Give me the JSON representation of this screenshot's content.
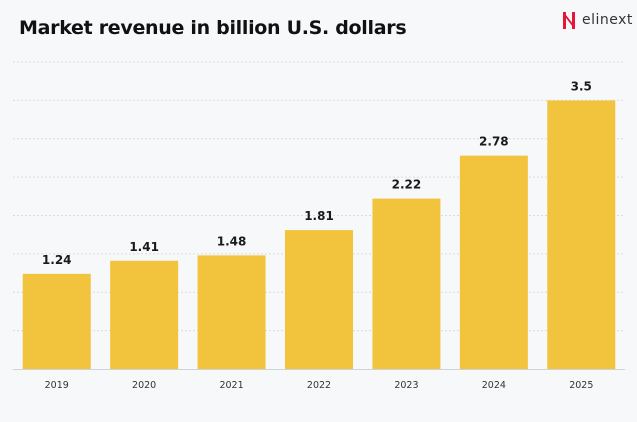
{
  "brand": {
    "name": "elinext",
    "accent": "#e4163a"
  },
  "chart_data": {
    "type": "bar",
    "title": "Market revenue in billion U.S. dollars",
    "categories": [
      "2019",
      "2020",
      "2021",
      "2022",
      "2023",
      "2024",
      "2025"
    ],
    "values": [
      1.24,
      1.41,
      1.48,
      1.81,
      2.22,
      2.78,
      3.5
    ],
    "data_labels": [
      "1.24",
      "1.41",
      "1.48",
      "1.81",
      "2.22",
      "2.78",
      "3.5"
    ],
    "xlabel": "",
    "ylabel": "",
    "ylim": [
      0,
      4
    ],
    "grid": true,
    "grid_step": 0.5,
    "y_tick_labels_shown": false,
    "bar_color": "#f2c43d"
  }
}
